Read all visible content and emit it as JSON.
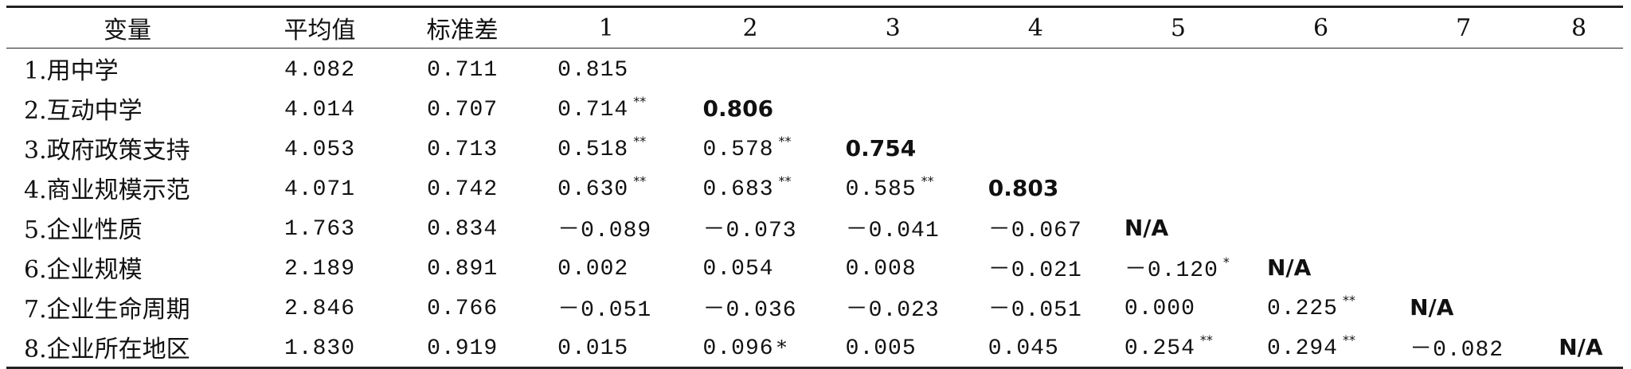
{
  "table": {
    "headers": [
      "变量",
      "平均值",
      "标准差",
      "1",
      "2",
      "3",
      "4",
      "5",
      "6",
      "7",
      "8"
    ],
    "rows": [
      {
        "name": "1.用中学",
        "mean": "4.082",
        "sd": "0.711",
        "cells": [
          {
            "v": "0.815",
            "s": "",
            "d": false
          },
          null,
          null,
          null,
          null,
          null,
          null,
          null
        ]
      },
      {
        "name": "2.互动中学",
        "mean": "4.014",
        "sd": "0.707",
        "cells": [
          {
            "v": "0.714",
            "s": "**"
          },
          {
            "v": "0.806",
            "s": "",
            "d": true
          },
          null,
          null,
          null,
          null,
          null,
          null
        ]
      },
      {
        "name": "3.政府政策支持",
        "mean": "4.053",
        "sd": "0.713",
        "cells": [
          {
            "v": "0.518",
            "s": "**"
          },
          {
            "v": "0.578",
            "s": "**"
          },
          {
            "v": "0.754",
            "s": "",
            "d": true
          },
          null,
          null,
          null,
          null,
          null
        ]
      },
      {
        "name": "4.商业规模示范",
        "mean": "4.071",
        "sd": "0.742",
        "cells": [
          {
            "v": "0.630",
            "s": "**"
          },
          {
            "v": "0.683",
            "s": "**"
          },
          {
            "v": "0.585",
            "s": "**"
          },
          {
            "v": "0.803",
            "s": "",
            "d": true
          },
          null,
          null,
          null,
          null
        ]
      },
      {
        "name": "5.企业性质",
        "mean": "1.763",
        "sd": "0.834",
        "cells": [
          {
            "v": "－0.089",
            "s": ""
          },
          {
            "v": "－0.073",
            "s": ""
          },
          {
            "v": "－0.041",
            "s": ""
          },
          {
            "v": "－0.067",
            "s": ""
          },
          {
            "v": "N/A",
            "s": "",
            "d": true
          },
          null,
          null,
          null
        ]
      },
      {
        "name": "6.企业规模",
        "mean": "2.189",
        "sd": "0.891",
        "cells": [
          {
            "v": "0.002",
            "s": ""
          },
          {
            "v": "0.054",
            "s": ""
          },
          {
            "v": "0.008",
            "s": ""
          },
          {
            "v": "－0.021",
            "s": ""
          },
          {
            "v": "－0.120",
            "s": "*"
          },
          {
            "v": "N/A",
            "s": "",
            "d": true
          },
          null,
          null
        ]
      },
      {
        "name": "7.企业生命周期",
        "mean": "2.846",
        "sd": "0.766",
        "cells": [
          {
            "v": "－0.051",
            "s": ""
          },
          {
            "v": "－0.036",
            "s": ""
          },
          {
            "v": "－0.023",
            "s": ""
          },
          {
            "v": "－0.051",
            "s": ""
          },
          {
            "v": "0.000",
            "s": ""
          },
          {
            "v": "0.225",
            "s": "**"
          },
          {
            "v": "N/A",
            "s": "",
            "d": true
          },
          null
        ]
      },
      {
        "name": "8.企业所在地区",
        "mean": "1.830",
        "sd": "0.919",
        "cells": [
          {
            "v": "0.015",
            "s": ""
          },
          {
            "v": "0.096",
            "s": "*",
            "inline": true
          },
          {
            "v": "0.005",
            "s": ""
          },
          {
            "v": "0.045",
            "s": ""
          },
          {
            "v": "0.254",
            "s": "**"
          },
          {
            "v": "0.294",
            "s": "**"
          },
          {
            "v": "－0.082",
            "s": ""
          },
          {
            "v": "N/A",
            "s": "",
            "d": true
          }
        ]
      }
    ]
  }
}
